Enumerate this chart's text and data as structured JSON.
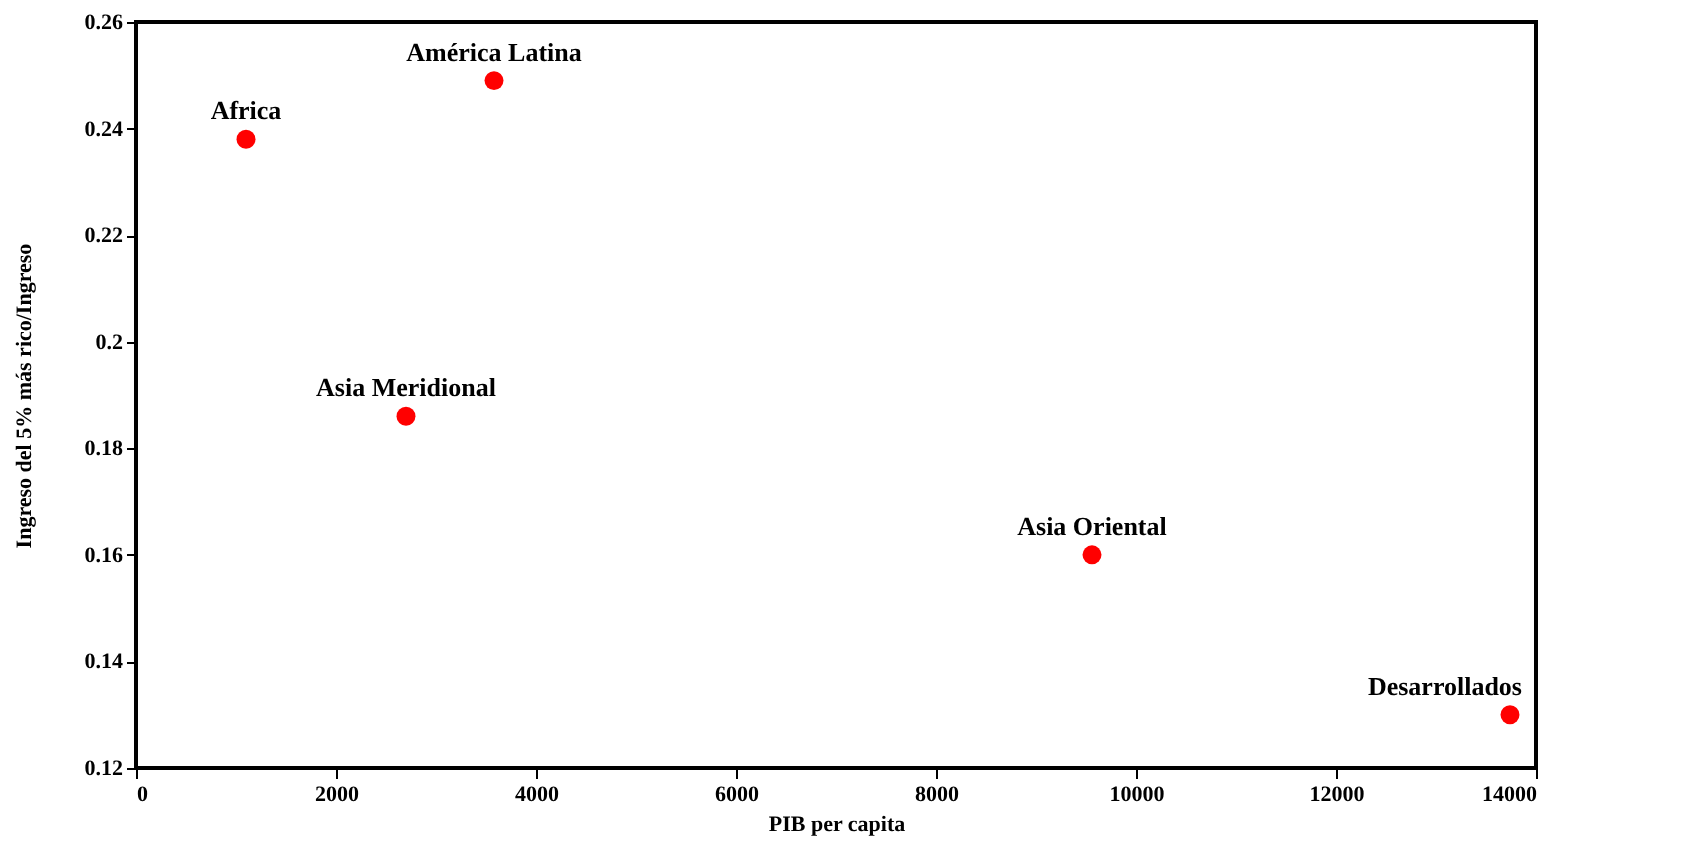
{
  "chart_data": {
    "type": "scatter",
    "xlabel": "PIB per capita",
    "ylabel": "Ingreso del 5% más rico/Ingreso",
    "x": [
      1100,
      3580,
      2700,
      9560,
      13740
    ],
    "series": [
      {
        "color": "#ff0000",
        "values": [
          0.238,
          0.249,
          0.186,
          0.16,
          0.13
        ]
      }
    ],
    "xlim": [
      0,
      14000
    ],
    "xticks": [
      0,
      2000,
      4000,
      6000,
      8000,
      10000,
      12000,
      14000
    ],
    "ylim": [
      0.12,
      0.26
    ],
    "yticks": [
      0.12,
      0.14,
      0.16,
      0.18,
      0.2,
      0.22,
      0.24,
      0.26
    ],
    "grid": false,
    "marker": "circle",
    "annotations": [
      {
        "text": "Africa",
        "x": 1100,
        "y": 0.238
      },
      {
        "text": "América Latina",
        "x": 3580,
        "y": 0.249
      },
      {
        "text": "Asia Meridional",
        "x": 2700,
        "y": 0.186
      },
      {
        "text": "Asia Oriental",
        "x": 9560,
        "y": 0.16
      },
      {
        "text": "Desarrollados",
        "x": 13740,
        "y": 0.13
      }
    ]
  }
}
